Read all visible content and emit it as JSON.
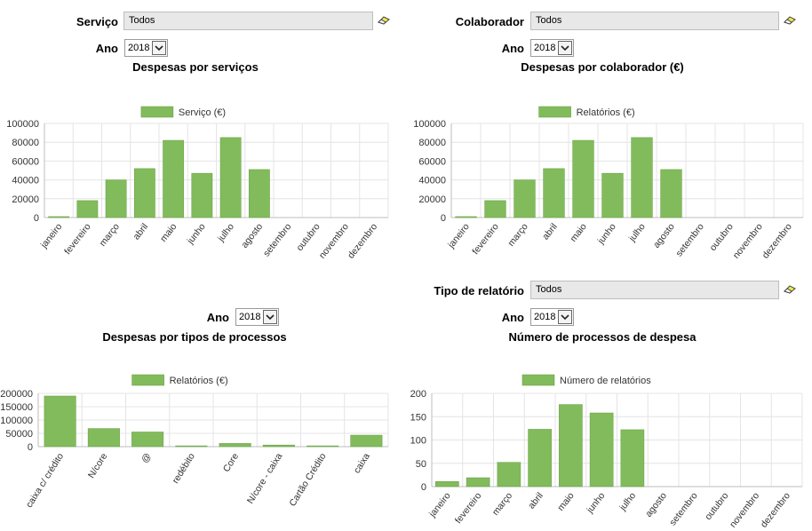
{
  "panel_tl": {
    "filter_label": "Serviço",
    "filter_value": "Todos",
    "year_label": "Ano",
    "year_value": "2018",
    "title": "Despesas por serviços"
  },
  "panel_tr": {
    "filter_label": "Colaborador",
    "filter_value": "Todos",
    "year_label": "Ano",
    "year_value": "2018",
    "title": "Despesas por colaborador (€)"
  },
  "panel_bl": {
    "year_label": "Ano",
    "year_value": "2018",
    "title": "Despesas por tipos de processos"
  },
  "panel_br": {
    "filter_label": "Tipo de relatório",
    "filter_value": "Todos",
    "year_label": "Ano",
    "year_value": "2018",
    "title": "Número de processos de despesa"
  },
  "colors": {
    "bar": "#82bb5c",
    "grid": "#e4e4e4",
    "axis": "#bdbdbd"
  },
  "icons": {
    "clear": "eraser-icon",
    "dropdown": "chevron-down-icon"
  },
  "chart_data": [
    {
      "id": "tl",
      "type": "bar",
      "categories": [
        "janeiro",
        "fevereiro",
        "março",
        "abril",
        "maio",
        "junho",
        "julho",
        "agosto",
        "setembro",
        "outubro",
        "novembro",
        "dezembro"
      ],
      "series": [
        {
          "name": "Serviço (€)",
          "values": [
            1000,
            18000,
            40000,
            52000,
            82000,
            47000,
            85000,
            51000,
            0,
            0,
            0,
            0
          ]
        }
      ],
      "ylim": [
        0,
        100000
      ],
      "yticks": [
        "0",
        "20000",
        "40000",
        "60000",
        "80000",
        "100000"
      ],
      "grid": true,
      "legend": "top-center"
    },
    {
      "id": "tr",
      "type": "bar",
      "categories": [
        "janeiro",
        "fevereiro",
        "março",
        "abril",
        "maio",
        "junho",
        "julho",
        "agosto",
        "setembro",
        "outubro",
        "novembro",
        "dezembro"
      ],
      "series": [
        {
          "name": "Relatórios (€)",
          "values": [
            1000,
            18000,
            40000,
            52000,
            82000,
            47000,
            85000,
            51000,
            0,
            0,
            0,
            0
          ]
        }
      ],
      "ylim": [
        0,
        100000
      ],
      "yticks": [
        "0",
        "20000",
        "40000",
        "60000",
        "80000",
        "100000"
      ],
      "grid": true,
      "legend": "top-center"
    },
    {
      "id": "bl",
      "type": "bar",
      "categories": [
        "caixa c/ crédito",
        "N/core",
        "@",
        "redébito",
        "Core",
        "N/core - caixa",
        "Cartão Crédito",
        "caixa"
      ],
      "series": [
        {
          "name": "Relatórios (€)",
          "values": [
            190000,
            68000,
            55000,
            3000,
            12000,
            6000,
            3000,
            43000
          ]
        }
      ],
      "ylim": [
        0,
        200000
      ],
      "yticks": [
        "0",
        "50000",
        "100000",
        "150000",
        "200000"
      ],
      "grid": true,
      "legend": "top-center"
    },
    {
      "id": "br",
      "type": "bar",
      "categories": [
        "janeiro",
        "fevereiro",
        "março",
        "abril",
        "maio",
        "junho",
        "julho",
        "agosto",
        "setembro",
        "outubro",
        "novembro",
        "dezembro"
      ],
      "series": [
        {
          "name": "Número de relatórios",
          "values": [
            11,
            19,
            52,
            123,
            176,
            158,
            122,
            0,
            0,
            0,
            0,
            0
          ]
        }
      ],
      "ylim": [
        0,
        200
      ],
      "yticks": [
        "0",
        "50",
        "100",
        "150",
        "200"
      ],
      "grid": true,
      "legend": "top-center"
    }
  ]
}
